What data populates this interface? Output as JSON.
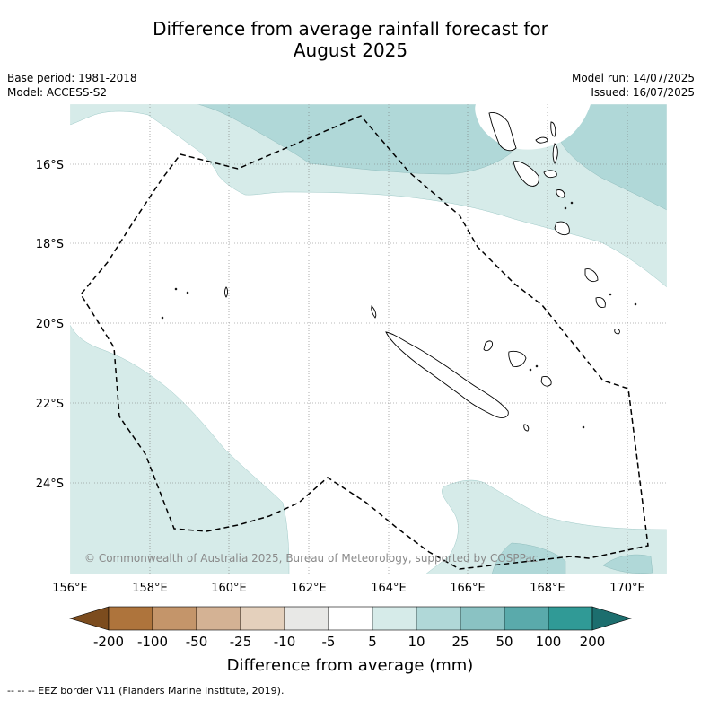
{
  "title_line1": "Difference from average rainfall forecast for",
  "title_line2": "August 2025",
  "meta": {
    "base_period": "Base period: 1981-2018",
    "model": "Model: ACCESS-S2",
    "model_run": "Model run: 14/07/2025",
    "issued": "Issued: 16/07/2025"
  },
  "map": {
    "lon_labels": [
      "156°E",
      "158°E",
      "160°E",
      "162°E",
      "164°E",
      "166°E",
      "168°E",
      "170°E"
    ],
    "lat_labels": [
      "16°S",
      "18°S",
      "20°S",
      "22°S",
      "24°S"
    ],
    "lon_range": [
      156,
      171
    ],
    "lat_range": [
      -14.5,
      -26.3
    ],
    "gridlines": true,
    "features": [
      "eez-border",
      "coastlines",
      "rainfall-anomaly-shading"
    ],
    "credit": "© Commonwealth of Australia 2025, Bureau of Meteorology, supported by COSPPac"
  },
  "colorbar": {
    "title": "Difference from average (mm)",
    "tick_labels": [
      "-200",
      "-100",
      "-50",
      "-25",
      "-10",
      "-5",
      "5",
      "10",
      "25",
      "50",
      "100",
      "200"
    ],
    "colors": {
      "below_min": "#7c4c1e",
      "bins": [
        "#ae743c",
        "#c4956a",
        "#d4b294",
        "#e4d0bc",
        "#e8e8e6",
        "#ffffff",
        "#d6ebe9",
        "#b0d8d8",
        "#8ac2c3",
        "#5aaaab",
        "#309a96"
      ],
      "above_max": "#1c6e6e"
    }
  },
  "footer": "--  --  -- EEZ border V11 (Flanders Marine Institute, 2019)."
}
